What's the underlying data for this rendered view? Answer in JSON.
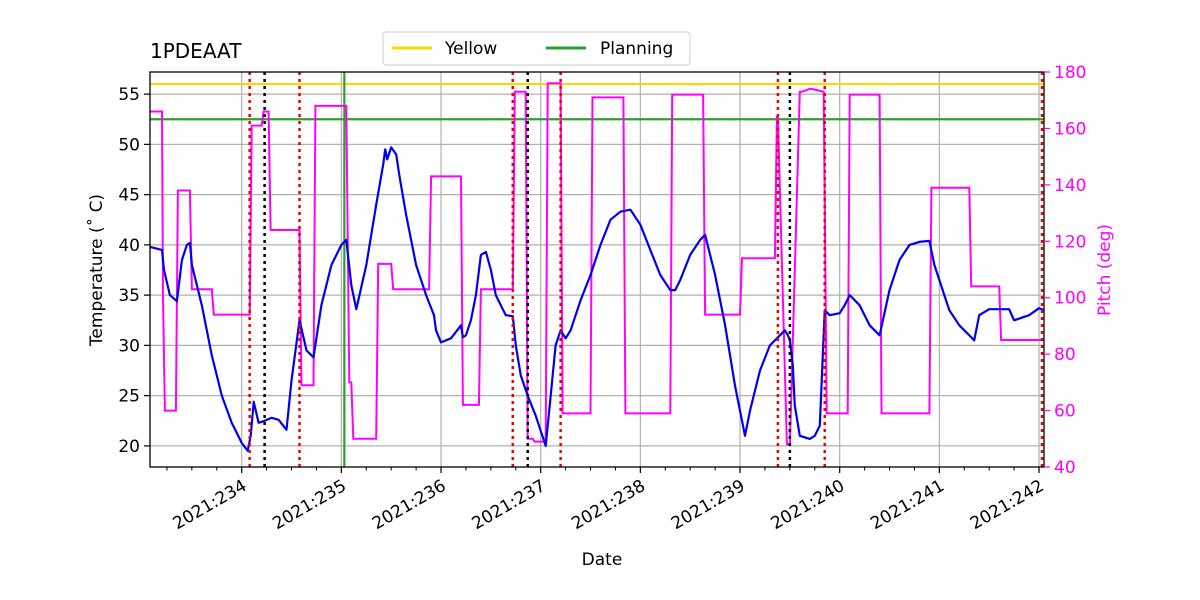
{
  "chart_data": {
    "type": "line",
    "title": "1PDEAAT",
    "xlabel": "Date",
    "ylabel": "Temperature ($^\\circ$C)",
    "ylabel_display": "Temperature (˚ C)",
    "y2label": "Pitch (deg)",
    "xlim": [
      233.08,
      242.05
    ],
    "ylim": [
      17.9,
      57.2
    ],
    "y2lim": [
      40,
      180
    ],
    "grid": true,
    "legend_position": "top-center",
    "x_ticks": [
      {
        "value": 234,
        "label": "2021:234"
      },
      {
        "value": 235,
        "label": "2021:235"
      },
      {
        "value": 236,
        "label": "2021:236"
      },
      {
        "value": 237,
        "label": "2021:237"
      },
      {
        "value": 238,
        "label": "2021:238"
      },
      {
        "value": 239,
        "label": "2021:239"
      },
      {
        "value": 240,
        "label": "2021:240"
      },
      {
        "value": 241,
        "label": "2021:241"
      },
      {
        "value": 242,
        "label": "2021:242"
      }
    ],
    "y_ticks": [
      20,
      25,
      30,
      35,
      40,
      45,
      50,
      55
    ],
    "y2_ticks": [
      40,
      60,
      80,
      100,
      120,
      140,
      160,
      180
    ],
    "colors": {
      "temperature": "#0000ee",
      "pitch": "#ff00ff",
      "yellow": "#ffd700",
      "planning": "#2ca02c",
      "red_markers": "#ee0000",
      "black_markers": "#000000",
      "grid": "#b0b0b0"
    },
    "horizontal_limits": [
      {
        "name": "Yellow",
        "value": 56.0
      },
      {
        "name": "Planning",
        "value": 52.5
      }
    ],
    "legend": [
      "Yellow",
      "Planning"
    ],
    "planning_vertical_line": 235.03,
    "red_dotted_verticals": [
      234.08,
      234.58,
      236.72,
      237.2,
      239.38,
      239.85,
      242.03
    ],
    "black_dotted_verticals": [
      234.23,
      236.87,
      239.5
    ],
    "series": [
      {
        "name": "Temperature",
        "axis": "left",
        "x": [
          233.08,
          233.2,
          233.22,
          233.28,
          233.35,
          233.4,
          233.45,
          233.48,
          233.5,
          233.6,
          233.7,
          233.8,
          233.9,
          234.0,
          234.06,
          234.09,
          234.12,
          234.17,
          234.23,
          234.3,
          234.37,
          234.45,
          234.5,
          234.58,
          234.65,
          234.72,
          234.8,
          234.9,
          235.0,
          235.05,
          235.1,
          235.15,
          235.25,
          235.35,
          235.42,
          235.44,
          235.46,
          235.5,
          235.55,
          235.58,
          235.65,
          235.75,
          235.85,
          235.93,
          235.95,
          236.0,
          236.1,
          236.2,
          236.22,
          236.25,
          236.3,
          236.35,
          236.4,
          236.45,
          236.5,
          236.55,
          236.6,
          236.65,
          236.72,
          236.75,
          236.8,
          236.87,
          236.95,
          237.0,
          237.05,
          237.1,
          237.15,
          237.2,
          237.25,
          237.3,
          237.4,
          237.5,
          237.6,
          237.7,
          237.8,
          237.9,
          238.0,
          238.1,
          238.2,
          238.3,
          238.35,
          238.4,
          238.5,
          238.6,
          238.65,
          238.75,
          238.85,
          238.95,
          239.05,
          239.1,
          239.2,
          239.3,
          239.4,
          239.45,
          239.48,
          239.5,
          239.53,
          239.55,
          239.6,
          239.7,
          239.75,
          239.8,
          239.85,
          239.9,
          240.0,
          240.05,
          240.1,
          240.2,
          240.3,
          240.4,
          240.5,
          240.6,
          240.7,
          240.8,
          240.9,
          240.95,
          241.0,
          241.05,
          241.1,
          241.2,
          241.3,
          241.35,
          241.4,
          241.5,
          241.6,
          241.7,
          241.75,
          241.9,
          242.0,
          242.05
        ],
        "y": [
          39.8,
          39.5,
          37.5,
          35.0,
          34.4,
          38.5,
          40.0,
          40.2,
          38.0,
          34.0,
          29.0,
          25.0,
          22.3,
          20.3,
          19.5,
          21.0,
          24.4,
          22.3,
          22.5,
          22.8,
          22.6,
          21.6,
          26.5,
          32.5,
          29.5,
          28.8,
          34.0,
          38.0,
          40.0,
          40.5,
          36.0,
          33.6,
          38.0,
          44.0,
          48.0,
          49.5,
          48.5,
          49.7,
          49.0,
          47.0,
          43.0,
          38.0,
          35.0,
          33.0,
          31.5,
          30.3,
          30.7,
          32.0,
          30.8,
          31.0,
          32.5,
          35.0,
          39.0,
          39.3,
          37.5,
          35.0,
          34.0,
          33.0,
          32.9,
          30.0,
          27.0,
          25.0,
          23.0,
          21.5,
          20.0,
          25.0,
          30.0,
          31.5,
          30.7,
          31.5,
          34.5,
          37.0,
          40.0,
          42.5,
          43.3,
          43.5,
          42.0,
          39.5,
          37.0,
          35.5,
          35.5,
          36.5,
          39.0,
          40.5,
          41.0,
          37.0,
          32.0,
          26.0,
          21.0,
          23.5,
          27.5,
          30.0,
          31.0,
          31.5,
          31.0,
          30.5,
          28.0,
          24.0,
          21.0,
          20.7,
          21.0,
          22.0,
          33.5,
          33.0,
          33.2,
          34.0,
          35.0,
          34.0,
          32.0,
          31.0,
          35.5,
          38.5,
          40.0,
          40.3,
          40.4,
          38.0,
          36.5,
          35.0,
          33.5,
          32.0,
          31.0,
          30.5,
          33.0,
          33.6,
          33.6,
          33.6,
          32.5,
          33.0,
          33.7,
          33.5
        ]
      },
      {
        "name": "Pitch",
        "axis": "right",
        "x": [
          233.08,
          233.2,
          233.21,
          233.23,
          233.34,
          233.36,
          233.48,
          233.5,
          233.7,
          233.72,
          233.98,
          234.0,
          234.08,
          234.1,
          234.2,
          234.22,
          234.27,
          234.29,
          234.58,
          234.6,
          234.72,
          234.74,
          235.05,
          235.08,
          235.1,
          235.12,
          235.35,
          235.37,
          235.5,
          235.52,
          235.88,
          235.9,
          236.2,
          236.22,
          236.38,
          236.4,
          236.72,
          236.74,
          236.85,
          236.87,
          236.92,
          236.94,
          237.05,
          237.07,
          237.2,
          237.22,
          237.5,
          237.52,
          237.83,
          237.85,
          238.3,
          238.32,
          238.63,
          238.65,
          239.0,
          239.02,
          239.35,
          239.37,
          239.38,
          239.47,
          239.5,
          239.6,
          239.62,
          239.7,
          239.72,
          239.84,
          239.87,
          240.08,
          240.1,
          240.4,
          240.42,
          240.9,
          240.92,
          241.3,
          241.32,
          241.6,
          241.62,
          241.95,
          241.97,
          242.0,
          242.05
        ],
        "y": [
          166,
          166,
          100,
          60,
          60,
          138,
          138,
          103,
          103,
          94,
          94,
          94,
          94,
          161,
          161,
          166,
          166,
          124,
          124,
          69,
          69,
          168,
          168,
          70,
          70,
          50,
          50,
          112,
          112,
          103,
          103,
          143,
          143,
          62,
          62,
          103,
          103,
          173,
          173,
          50,
          50,
          49,
          49,
          176,
          176,
          59,
          59,
          171,
          171,
          59,
          59,
          172,
          172,
          94,
          94,
          114,
          114,
          164,
          164,
          48,
          48,
          173,
          173,
          174,
          174,
          173,
          59,
          59,
          172,
          172,
          59,
          59,
          139,
          139,
          104,
          104,
          85,
          85,
          85,
          85,
          85
        ]
      }
    ]
  }
}
